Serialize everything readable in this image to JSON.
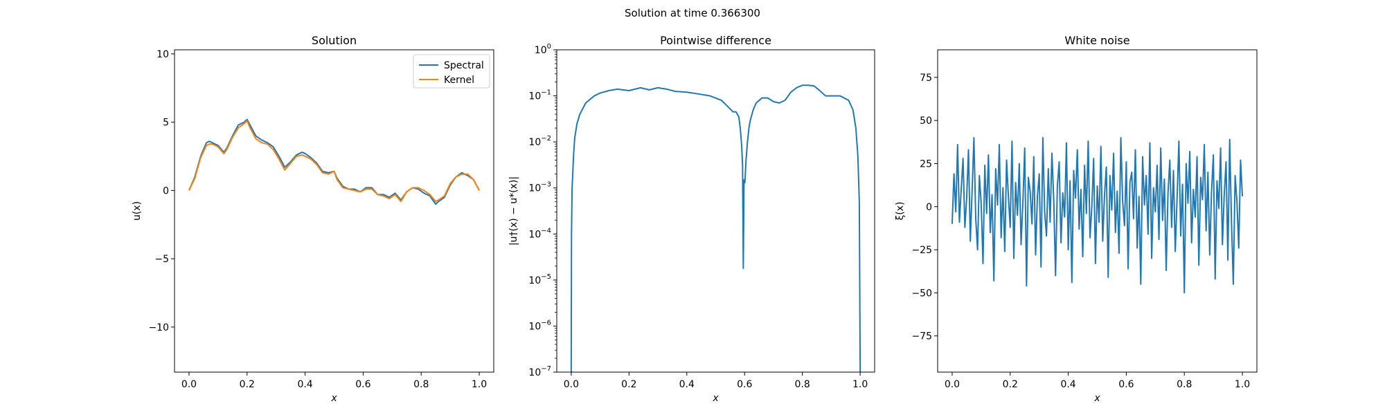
{
  "figure": {
    "suptitle": "Solution at time 0.366300"
  },
  "colors": {
    "spectral": "#1f77b4",
    "kernel": "#ff7f0e",
    "axis": "#000000"
  },
  "chart_data": [
    {
      "type": "line",
      "title": "Solution",
      "xlabel": "x",
      "ylabel": "u(x)",
      "xlim": [
        -0.05,
        1.05
      ],
      "ylim": [
        -13.3,
        10.3
      ],
      "yscale": "linear",
      "xticks": [
        0.0,
        0.2,
        0.4,
        0.6,
        0.8,
        1.0
      ],
      "xtick_labels": [
        "0.0",
        "0.2",
        "0.4",
        "0.6",
        "0.8",
        "1.0"
      ],
      "yticks": [
        -10,
        -5,
        0,
        5,
        10
      ],
      "ytick_labels": [
        "−10",
        "−5",
        "0",
        "5",
        "10"
      ],
      "legend": {
        "placement": "upper right",
        "entries": [
          "Spectral",
          "Kernel"
        ]
      },
      "series": [
        {
          "name": "Spectral",
          "x": [
            0.0,
            0.02,
            0.04,
            0.06,
            0.07,
            0.08,
            0.1,
            0.12,
            0.13,
            0.15,
            0.17,
            0.19,
            0.2,
            0.21,
            0.23,
            0.25,
            0.27,
            0.29,
            0.31,
            0.33,
            0.35,
            0.37,
            0.39,
            0.4,
            0.42,
            0.44,
            0.46,
            0.48,
            0.5,
            0.51,
            0.53,
            0.55,
            0.57,
            0.59,
            0.61,
            0.63,
            0.65,
            0.67,
            0.69,
            0.71,
            0.73,
            0.75,
            0.77,
            0.79,
            0.81,
            0.83,
            0.85,
            0.86,
            0.88,
            0.9,
            0.92,
            0.94,
            0.96,
            0.98,
            1.0
          ],
          "y": [
            0.0,
            1.0,
            2.5,
            3.5,
            3.6,
            3.5,
            3.3,
            2.8,
            3.1,
            4.0,
            4.8,
            5.0,
            5.2,
            4.8,
            4.0,
            3.7,
            3.5,
            3.2,
            2.5,
            1.7,
            2.1,
            2.6,
            2.8,
            2.7,
            2.4,
            2.0,
            1.4,
            1.3,
            1.4,
            0.9,
            0.3,
            0.1,
            0.1,
            -0.1,
            0.2,
            0.2,
            -0.3,
            -0.3,
            -0.5,
            -0.2,
            -0.7,
            -0.1,
            0.2,
            0.1,
            -0.2,
            -0.4,
            -1.0,
            -0.8,
            -0.5,
            0.4,
            1.0,
            1.3,
            1.1,
            0.8,
            0.0
          ]
        },
        {
          "name": "Kernel",
          "x": [
            0.0,
            0.02,
            0.04,
            0.06,
            0.07,
            0.08,
            0.1,
            0.12,
            0.13,
            0.15,
            0.17,
            0.19,
            0.2,
            0.21,
            0.23,
            0.25,
            0.27,
            0.29,
            0.31,
            0.33,
            0.35,
            0.37,
            0.39,
            0.4,
            0.42,
            0.44,
            0.46,
            0.48,
            0.5,
            0.51,
            0.53,
            0.55,
            0.57,
            0.59,
            0.61,
            0.63,
            0.65,
            0.67,
            0.69,
            0.71,
            0.73,
            0.75,
            0.77,
            0.79,
            0.81,
            0.83,
            0.85,
            0.86,
            0.88,
            0.9,
            0.92,
            0.94,
            0.96,
            0.98,
            1.0
          ],
          "y": [
            0.0,
            0.9,
            2.4,
            3.3,
            3.4,
            3.4,
            3.2,
            2.7,
            3.0,
            3.9,
            4.6,
            4.9,
            5.1,
            4.6,
            3.8,
            3.5,
            3.4,
            3.0,
            2.3,
            1.5,
            2.0,
            2.5,
            2.6,
            2.5,
            2.3,
            1.9,
            1.3,
            1.2,
            1.4,
            0.8,
            0.2,
            0.1,
            0.0,
            -0.1,
            0.1,
            0.1,
            -0.3,
            -0.4,
            -0.6,
            -0.3,
            -0.8,
            -0.1,
            0.2,
            0.2,
            0.0,
            -0.3,
            -0.8,
            -0.7,
            -0.4,
            0.5,
            1.0,
            1.2,
            1.2,
            0.8,
            0.0
          ]
        }
      ]
    },
    {
      "type": "line",
      "title": "Pointwise difference",
      "xlabel": "x",
      "ylabel": "|u†(x) − u*(x)|",
      "xlim": [
        -0.05,
        1.05
      ],
      "ylim": [
        1e-07,
        1
      ],
      "yscale": "log",
      "xticks": [
        0.0,
        0.2,
        0.4,
        0.6,
        0.8,
        1.0
      ],
      "xtick_labels": [
        "0.0",
        "0.2",
        "0.4",
        "0.6",
        "0.8",
        "1.0"
      ],
      "yticks": [
        1e-07,
        1e-06,
        1e-05,
        0.0001,
        0.001,
        0.01,
        0.1,
        1
      ],
      "ytick_labels": [
        {
          "base": "10",
          "exp": "−7"
        },
        {
          "base": "10",
          "exp": "−6"
        },
        {
          "base": "10",
          "exp": "−5"
        },
        {
          "base": "10",
          "exp": "−4"
        },
        {
          "base": "10",
          "exp": "−3"
        },
        {
          "base": "10",
          "exp": "−2"
        },
        {
          "base": "10",
          "exp": "−1"
        },
        {
          "base": "10",
          "exp": "0"
        }
      ],
      "series": [
        {
          "x": [
            0.0,
            0.001,
            0.003,
            0.005,
            0.008,
            0.012,
            0.02,
            0.03,
            0.05,
            0.08,
            0.1,
            0.13,
            0.16,
            0.2,
            0.24,
            0.27,
            0.3,
            0.33,
            0.36,
            0.4,
            0.44,
            0.48,
            0.52,
            0.54,
            0.56,
            0.57,
            0.58,
            0.585,
            0.59,
            0.593,
            0.5955,
            0.598,
            0.601,
            0.605,
            0.61,
            0.615,
            0.62,
            0.63,
            0.64,
            0.66,
            0.68,
            0.7,
            0.72,
            0.74,
            0.76,
            0.78,
            0.8,
            0.82,
            0.84,
            0.86,
            0.88,
            0.9,
            0.93,
            0.96,
            0.975,
            0.985,
            0.992,
            0.997,
            1.0
          ],
          "y": [
            1e-07,
            0.0001,
            0.001,
            0.0018,
            0.005,
            0.012,
            0.025,
            0.04,
            0.07,
            0.1,
            0.115,
            0.13,
            0.14,
            0.13,
            0.15,
            0.135,
            0.15,
            0.14,
            0.125,
            0.12,
            0.11,
            0.1,
            0.08,
            0.06,
            0.045,
            0.045,
            0.035,
            0.02,
            0.008,
            0.003,
            1.8e-05,
            0.0015,
            0.0013,
            0.004,
            0.01,
            0.02,
            0.03,
            0.05,
            0.07,
            0.09,
            0.09,
            0.075,
            0.07,
            0.08,
            0.12,
            0.15,
            0.17,
            0.17,
            0.165,
            0.13,
            0.1,
            0.1,
            0.1,
            0.08,
            0.05,
            0.02,
            0.005,
            0.0005,
            1e-07
          ]
        }
      ]
    },
    {
      "type": "line",
      "title": "White noise",
      "xlabel": "x",
      "ylabel": "ξ(x)",
      "xlim": [
        -0.05,
        1.05
      ],
      "ylim": [
        -96,
        91
      ],
      "yscale": "linear",
      "xticks": [
        0.0,
        0.2,
        0.4,
        0.6,
        0.8,
        1.0
      ],
      "xtick_labels": [
        "0.0",
        "0.2",
        "0.4",
        "0.6",
        "0.8",
        "1.0"
      ],
      "yticks": [
        -75,
        -50,
        -25,
        0,
        25,
        50,
        75
      ],
      "ytick_labels": [
        "−75",
        "−50",
        "−25",
        "0",
        "25",
        "50",
        "75"
      ],
      "series": [
        {
          "x_start": 0.0,
          "x_end": 1.0,
          "y": [
            -10,
            19,
            -3,
            36,
            -9,
            10,
            28,
            -12,
            5,
            33,
            -20,
            9,
            40,
            -7,
            -25,
            18,
            2,
            -33,
            24,
            -4,
            30,
            -15,
            7,
            -43,
            22,
            1,
            36,
            -18,
            11,
            -26,
            27,
            6,
            -12,
            38,
            -30,
            14,
            -5,
            25,
            -22,
            3,
            34,
            -46,
            17,
            9,
            -10,
            29,
            -28,
            6,
            19,
            -35,
            40,
            -3,
            -17,
            22,
            -9,
            31,
            4,
            -40,
            12,
            26,
            -21,
            8,
            -6,
            37,
            -25,
            15,
            -44,
            21,
            5,
            33,
            -13,
            10,
            -29,
            24,
            -4,
            38,
            -18,
            0,
            28,
            -33,
            12,
            -9,
            35,
            -20,
            7,
            23,
            -41,
            18,
            -2,
            31,
            -15,
            9,
            -27,
            40,
            3,
            -11,
            26,
            -36,
            14,
            20,
            -7,
            33,
            -24,
            6,
            -45,
            29,
            1,
            18,
            -16,
            37,
            -30,
            11,
            -3,
            24,
            -19,
            34,
            -8,
            16,
            -37,
            8,
            27,
            -12,
            21,
            -26,
            5,
            38,
            -17,
            13,
            -50,
            25,
            2,
            32,
            -21,
            10,
            -6,
            29,
            -34,
            17,
            4,
            36,
            -14,
            20,
            -28,
            9,
            30,
            -42,
            15,
            -1,
            34,
            -22,
            7,
            26,
            -31,
            39,
            -9,
            -45,
            18,
            3,
            -24,
            27,
            6
          ]
        }
      ]
    }
  ]
}
